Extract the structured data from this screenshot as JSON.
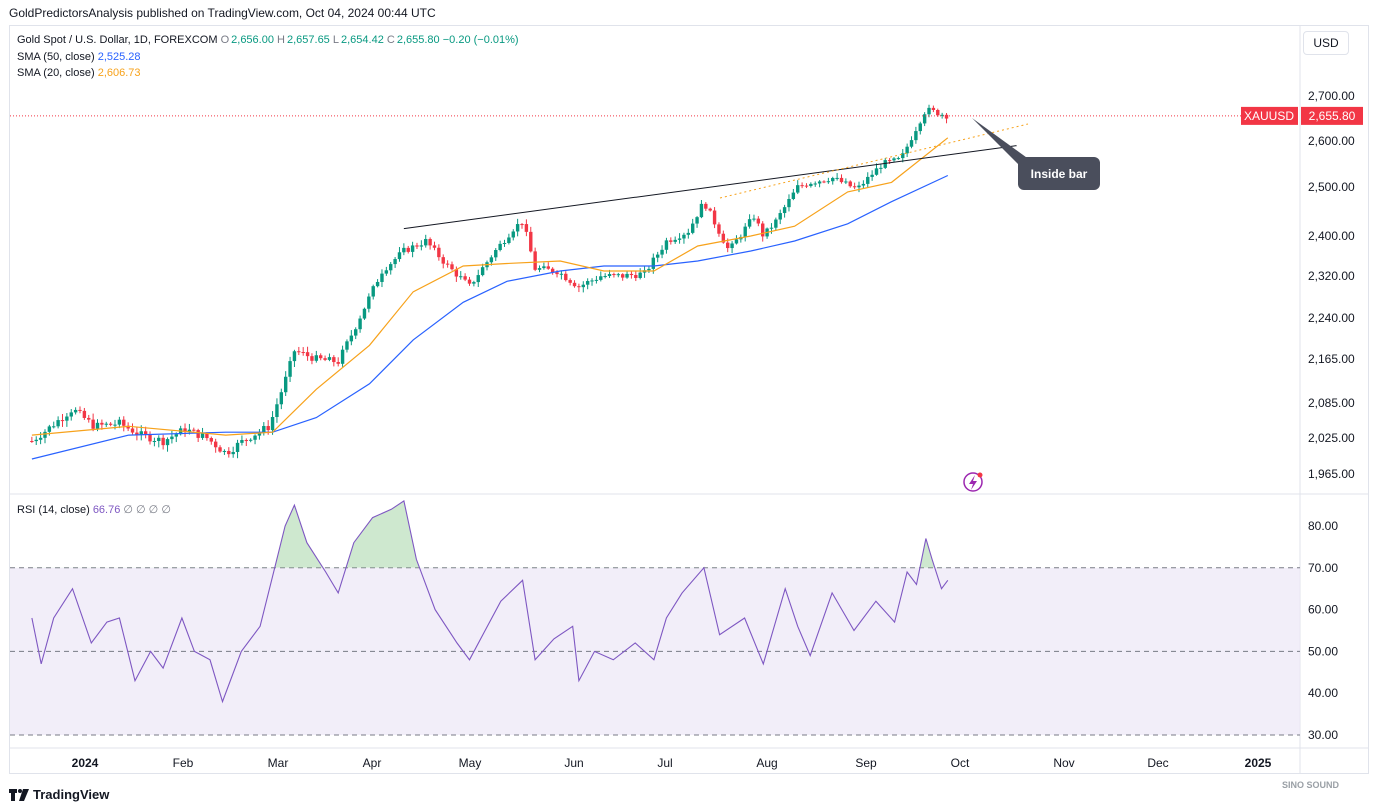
{
  "publisher": "GoldPredictorsAnalysis published on TradingView.com, Oct 04, 2024 00:44 UTC",
  "legend": {
    "symbol": "Gold Spot / U.S. Dollar, 1D, FOREXCOM",
    "o_label": "O",
    "o": "2,656.00",
    "h_label": "H",
    "h": "2,657.65",
    "l_label": "L",
    "l": "2,654.42",
    "c_label": "C",
    "c": "2,655.80",
    "change": "−0.20 (−0.01%)",
    "sma50_label": "SMA (50, close)",
    "sma50_value": "2,525.28",
    "sma20_label": "SMA (20, close)",
    "sma20_value": "2,606.73",
    "rsi_label": "RSI (14, close)",
    "rsi_value": "66.76",
    "rsi_extra": "∅ ∅ ∅ ∅"
  },
  "currency": "USD",
  "symbol_badge": "XAUUSD",
  "last_price": "2,655.80",
  "annotation": "Inside bar",
  "footer_brand": "TradingView",
  "watermark": "SINO SOUND",
  "colors": {
    "up": "#089981",
    "down": "#f23645",
    "sma50": "#2962ff",
    "sma20": "#f7a21b",
    "rsi": "#7e57c2",
    "rsi_band": "#ede7f6",
    "rsi_fill": "#a5d6a7",
    "badge": "#f23645"
  },
  "chart_data": [
    {
      "type": "candlestick",
      "title": "Gold Spot / U.S. Dollar, 1D, FOREXCOM",
      "y_axis_ticks": [
        1965,
        2025,
        2085,
        2165,
        2240,
        2320,
        2400,
        2500,
        2600,
        2700
      ],
      "y_axis_labels": [
        "1,965.00",
        "2,025.00",
        "2,085.00",
        "2,165.00",
        "2,240.00",
        "2,320.00",
        "2,400.00",
        "2,500.00",
        "2,600.00",
        "2,700.00"
      ],
      "x_axis_labels": [
        "2024",
        "Feb",
        "Mar",
        "Apr",
        "May",
        "Jun",
        "Jul",
        "Aug",
        "Sep",
        "Oct",
        "Nov",
        "Dec",
        "2025"
      ],
      "close_path": [
        [
          "Dec 15",
          2020
        ],
        [
          "Dec 20",
          2040
        ],
        [
          "Dec 28",
          2075
        ],
        [
          "Jan 4",
          2045
        ],
        [
          "Jan 12",
          2050
        ],
        [
          "Jan 19",
          2030
        ],
        [
          "Jan 26",
          2020
        ],
        [
          "Feb 2",
          2040
        ],
        [
          "Feb 9",
          2025
        ],
        [
          "Feb 15",
          2000
        ],
        [
          "Feb 22",
          2025
        ],
        [
          "Feb 29",
          2045
        ],
        [
          "Mar 5",
          2125
        ],
        [
          "Mar 8",
          2180
        ],
        [
          "Mar 15",
          2165
        ],
        [
          "Mar 22",
          2160
        ],
        [
          "Mar 28",
          2230
        ],
        [
          "Apr 5",
          2330
        ],
        [
          "Apr 12",
          2370
        ],
        [
          "Apr 19",
          2390
        ],
        [
          "Apr 26",
          2340
        ],
        [
          "May 3",
          2300
        ],
        [
          "May 10",
          2360
        ],
        [
          "May 17",
          2415
        ],
        [
          "May 20",
          2430
        ],
        [
          "May 24",
          2335
        ],
        [
          "May 31",
          2330
        ],
        [
          "Jun 7",
          2300
        ],
        [
          "Jun 14",
          2320
        ],
        [
          "Jun 21",
          2320
        ],
        [
          "Jun 28",
          2325
        ],
        [
          "Jul 5",
          2390
        ],
        [
          "Jul 12",
          2410
        ],
        [
          "Jul 17",
          2470
        ],
        [
          "Jul 25",
          2370
        ],
        [
          "Aug 2",
          2440
        ],
        [
          "Aug 5",
          2400
        ],
        [
          "Aug 9",
          2430
        ],
        [
          "Aug 16",
          2500
        ],
        [
          "Aug 20",
          2510
        ],
        [
          "Aug 27",
          2520
        ],
        [
          "Sep 4",
          2495
        ],
        [
          "Sep 12",
          2550
        ],
        [
          "Sep 18",
          2560
        ],
        [
          "Sep 23",
          2630
        ],
        [
          "Sep 26",
          2670
        ],
        [
          "Oct 1",
          2660
        ],
        [
          "Oct 3",
          2656
        ]
      ],
      "sma50_path": [
        [
          "Dec 15",
          1990
        ],
        [
          "Jan 15",
          2030
        ],
        [
          "Feb 15",
          2035
        ],
        [
          "Mar 1",
          2035
        ],
        [
          "Mar 15",
          2060
        ],
        [
          "Apr 1",
          2120
        ],
        [
          "Apr 15",
          2200
        ],
        [
          "May 1",
          2270
        ],
        [
          "May 15",
          2310
        ],
        [
          "Jun 1",
          2330
        ],
        [
          "Jun 15",
          2340
        ],
        [
          "Jul 1",
          2340
        ],
        [
          "Jul 15",
          2350
        ],
        [
          "Aug 1",
          2370
        ],
        [
          "Aug 15",
          2390
        ],
        [
          "Sep 1",
          2425
        ],
        [
          "Sep 15",
          2470
        ],
        [
          "Oct 3",
          2525
        ]
      ],
      "sma20_path": [
        [
          "Dec 15",
          2030
        ],
        [
          "Jan 15",
          2045
        ],
        [
          "Feb 15",
          2030
        ],
        [
          "Mar 1",
          2035
        ],
        [
          "Mar 15",
          2110
        ],
        [
          "Apr 1",
          2190
        ],
        [
          "Apr 15",
          2290
        ],
        [
          "May 1",
          2340
        ],
        [
          "May 15",
          2345
        ],
        [
          "Jun 1",
          2350
        ],
        [
          "Jun 15",
          2330
        ],
        [
          "Jul 1",
          2330
        ],
        [
          "Jul 15",
          2380
        ],
        [
          "Aug 1",
          2400
        ],
        [
          "Aug 15",
          2420
        ],
        [
          "Sep 1",
          2490
        ],
        [
          "Sep 15",
          2510
        ],
        [
          "Oct 3",
          2607
        ]
      ],
      "trendline": [
        [
          "Apr 12",
          2415
        ],
        [
          "Oct 25",
          2590
        ]
      ],
      "last_price": 2655.8
    },
    {
      "type": "line",
      "title": "RSI (14, close)",
      "y_axis_ticks": [
        30,
        40,
        50,
        60,
        70,
        80
      ],
      "y_axis_labels": [
        "30.00",
        "40.00",
        "50.00",
        "60.00",
        "70.00",
        "80.00"
      ],
      "band_upper": 70,
      "band_middle": 50,
      "band_lower": 30,
      "values": [
        [
          "Dec 15",
          58
        ],
        [
          "Dec 18",
          47
        ],
        [
          "Dec 22",
          58
        ],
        [
          "Dec 28",
          65
        ],
        [
          "Jan 3",
          52
        ],
        [
          "Jan 8",
          57
        ],
        [
          "Jan 12",
          58
        ],
        [
          "Jan 17",
          43
        ],
        [
          "Jan 22",
          50
        ],
        [
          "Jan 26",
          46
        ],
        [
          "Feb 1",
          58
        ],
        [
          "Feb 5",
          50
        ],
        [
          "Feb 10",
          48
        ],
        [
          "Feb 14",
          38
        ],
        [
          "Feb 20",
          50
        ],
        [
          "Feb 26",
          56
        ],
        [
          "Mar 1",
          68
        ],
        [
          "Mar 5",
          80
        ],
        [
          "Mar 8",
          85
        ],
        [
          "Mar 12",
          76
        ],
        [
          "Mar 18",
          69
        ],
        [
          "Mar 22",
          64
        ],
        [
          "Mar 27",
          76
        ],
        [
          "Apr 2",
          82
        ],
        [
          "Apr 8",
          84
        ],
        [
          "Apr 12",
          86
        ],
        [
          "Apr 16",
          72
        ],
        [
          "Apr 22",
          60
        ],
        [
          "Apr 29",
          52
        ],
        [
          "May 3",
          48
        ],
        [
          "May 8",
          55
        ],
        [
          "May 13",
          62
        ],
        [
          "May 20",
          67
        ],
        [
          "May 24",
          48
        ],
        [
          "May 30",
          53
        ],
        [
          "Jun 5",
          56
        ],
        [
          "Jun 7",
          43
        ],
        [
          "Jun 12",
          50
        ],
        [
          "Jun 18",
          48
        ],
        [
          "Jun 25",
          52
        ],
        [
          "Jul 1",
          48
        ],
        [
          "Jul 5",
          58
        ],
        [
          "Jul 10",
          64
        ],
        [
          "Jul 17",
          70
        ],
        [
          "Jul 22",
          54
        ],
        [
          "Jul 30",
          58
        ],
        [
          "Aug 5",
          47
        ],
        [
          "Aug 12",
          65
        ],
        [
          "Aug 16",
          56
        ],
        [
          "Aug 20",
          49
        ],
        [
          "Aug 27",
          64
        ],
        [
          "Sep 3",
          55
        ],
        [
          "Sep 10",
          62
        ],
        [
          "Sep 16",
          57
        ],
        [
          "Sep 20",
          69
        ],
        [
          "Sep 23",
          66
        ],
        [
          "Sep 26",
          77
        ],
        [
          "Sep 28",
          72
        ],
        [
          "Oct 1",
          65
        ],
        [
          "Oct 3",
          67
        ]
      ],
      "last_value": 66.76
    }
  ]
}
